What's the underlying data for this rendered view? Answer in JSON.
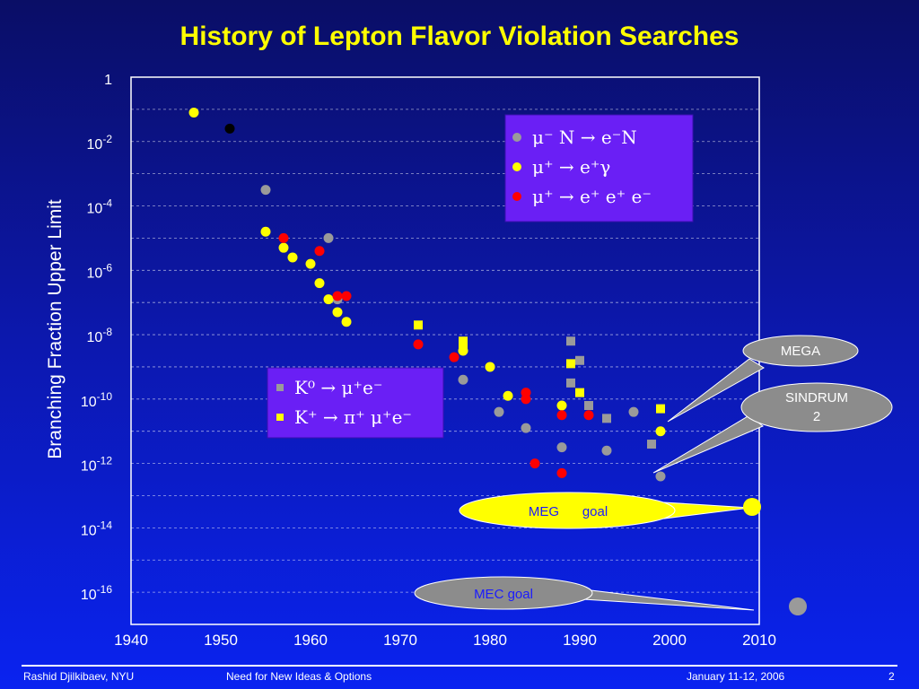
{
  "slide": {
    "title": "History of Lepton Flavor Violation Searches",
    "footer": {
      "author": "Rashid Djilkibaev, NYU",
      "topic": "Need for New Ideas & Options",
      "date": "January 11-12, 2006",
      "page": "2"
    }
  },
  "colors": {
    "title": "#ffff00",
    "gray_series": "#9a9a9a",
    "yellow_series": "#ffff00",
    "red_series": "#ff0000",
    "black_point": "#000000",
    "legend_box": "#6a1ff5"
  },
  "chart_data": {
    "type": "scatter",
    "title": "History of Lepton Flavor Violation Searches",
    "xlabel": "",
    "ylabel": "Branching Fraction Upper Limit",
    "xlim": [
      1940,
      2010
    ],
    "ylim_log10": [
      -17,
      0
    ],
    "y_scale": "log",
    "grid": "horizontal",
    "x_ticks": [
      "1940",
      "1950",
      "1960",
      "1970",
      "1980",
      "1990",
      "2000",
      "2010"
    ],
    "y_ticks": [
      {
        "base": "1",
        "exp": ""
      },
      {
        "base": "10",
        "exp": "-2"
      },
      {
        "base": "10",
        "exp": "-4"
      },
      {
        "base": "10",
        "exp": "-6"
      },
      {
        "base": "10",
        "exp": "-8"
      },
      {
        "base": "10",
        "exp": "-10"
      },
      {
        "base": "10",
        "exp": "-12"
      },
      {
        "base": "10",
        "exp": "-14"
      },
      {
        "base": "10",
        "exp": "-16"
      }
    ],
    "y_tick_values_log10": [
      0,
      -2,
      -4,
      -6,
      -8,
      -10,
      -12,
      -14,
      -16
    ],
    "legend_circles": {
      "placement": "top-right",
      "entries": [
        {
          "series": "mu_N_eN",
          "text": "μ⁻ N → e⁻N"
        },
        {
          "series": "mu_egamma",
          "text": "μ⁺ → e⁺γ"
        },
        {
          "series": "mu_eee",
          "text": "μ⁺ → e⁺ e⁺ e⁻"
        }
      ]
    },
    "legend_squares": {
      "placement": "center",
      "entries": [
        {
          "series": "K0",
          "text": "K⁰ → μ⁺e⁻"
        },
        {
          "series": "Kplus",
          "text": "K⁺ → π⁺ μ⁺e⁻"
        }
      ]
    },
    "series": [
      {
        "id": "mu_N_eN",
        "marker": "circle",
        "color": "#9a9a9a",
        "points": [
          [
            1955,
            -3.5
          ],
          [
            1962,
            -5.0
          ],
          [
            1963,
            -6.9
          ],
          [
            1977,
            -9.4
          ],
          [
            1981,
            -10.4
          ],
          [
            1984,
            -10.9
          ],
          [
            1988,
            -11.5
          ],
          [
            1993,
            -11.6
          ],
          [
            1996,
            -10.4
          ],
          [
            1999,
            -12.4
          ]
        ]
      },
      {
        "id": "mu_egamma",
        "marker": "circle",
        "color": "#ffff00",
        "points": [
          [
            1947,
            -1.1
          ],
          [
            1955,
            -4.8
          ],
          [
            1957,
            -5.3
          ],
          [
            1958,
            -5.6
          ],
          [
            1960,
            -5.8
          ],
          [
            1961,
            -6.4
          ],
          [
            1962,
            -6.9
          ],
          [
            1963,
            -7.3
          ],
          [
            1964,
            -7.6
          ],
          [
            1977,
            -8.5
          ],
          [
            1980,
            -9.0
          ],
          [
            1982,
            -9.9
          ],
          [
            1988,
            -10.2
          ],
          [
            1999,
            -11.0
          ]
        ]
      },
      {
        "id": "mu_eee",
        "marker": "circle",
        "color": "#ff0000",
        "points": [
          [
            1957,
            -5.0
          ],
          [
            1961,
            -5.4
          ],
          [
            1963,
            -6.8
          ],
          [
            1964,
            -6.8
          ],
          [
            1972,
            -8.3
          ],
          [
            1976,
            -8.7
          ],
          [
            1984,
            -9.8
          ],
          [
            1984,
            -10.0
          ],
          [
            1985,
            -12.0
          ],
          [
            1988,
            -12.3
          ],
          [
            1988,
            -10.5
          ],
          [
            1991,
            -10.5
          ]
        ]
      },
      {
        "id": "black",
        "marker": "circle",
        "color": "#000000",
        "points": [
          [
            1951,
            -1.6
          ]
        ]
      },
      {
        "id": "K0",
        "marker": "square",
        "color": "#9a9a9a",
        "points": [
          [
            1989,
            -8.2
          ],
          [
            1990,
            -8.8
          ],
          [
            1989,
            -9.5
          ],
          [
            1991,
            -10.2
          ],
          [
            1993,
            -10.6
          ],
          [
            1998,
            -11.4
          ]
        ]
      },
      {
        "id": "Kplus",
        "marker": "square",
        "color": "#ffff00",
        "points": [
          [
            1972,
            -7.7
          ],
          [
            1977,
            -8.2
          ],
          [
            1977,
            -8.4
          ],
          [
            1989,
            -8.9
          ],
          [
            1990,
            -9.8
          ],
          [
            1999,
            -10.3
          ]
        ]
      }
    ],
    "annotations": [
      {
        "text": "MEGA",
        "target_x": 1999,
        "target_y_log10": -10.3,
        "style": "gray-bubble"
      },
      {
        "text": "SINDRUM",
        "text2": "2",
        "target_x": 1999,
        "target_y_log10": -12.4,
        "style": "gray-bubble"
      },
      {
        "text": "MEG",
        "text2": "goal",
        "target_x": 2011,
        "target_y_log10": -13.4,
        "style": "yellow-bubble"
      },
      {
        "text": "MEC goal",
        "target_x": 2015,
        "target_y_log10": -15.7,
        "style": "gray-bubble"
      }
    ]
  }
}
